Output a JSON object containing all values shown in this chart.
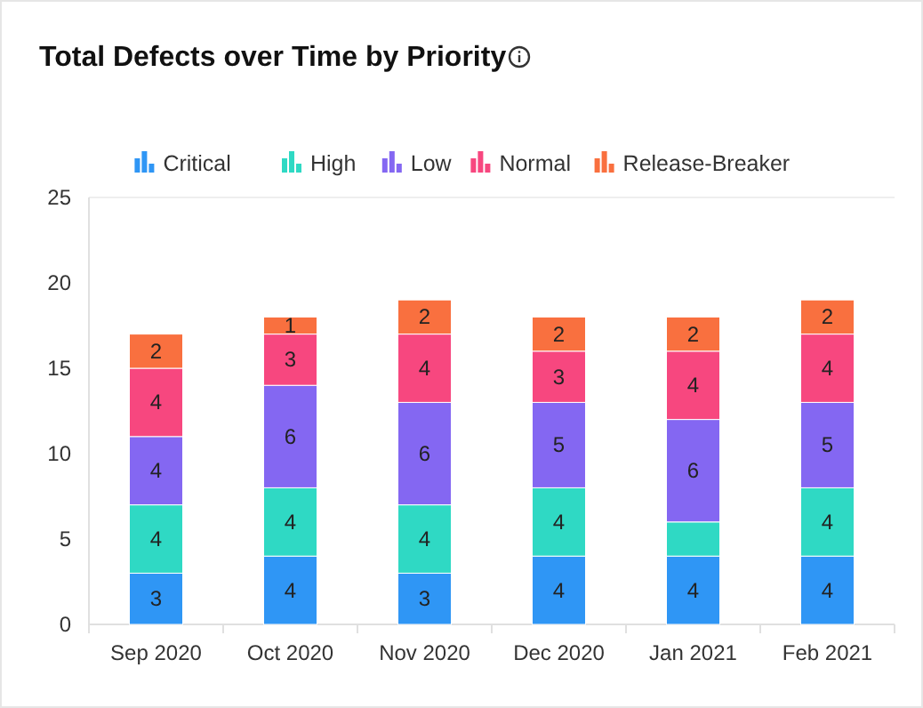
{
  "chart_data": {
    "type": "bar",
    "title": "Total Defects over Time by Priority",
    "stacked": true,
    "legend": "top",
    "grid": false,
    "categories": [
      "Sep 2020",
      "Oct 2020",
      "Nov 2020",
      "Dec 2020",
      "Jan 2021",
      "Feb 2021"
    ],
    "ylim": [
      0,
      25
    ],
    "yticks": [
      0,
      5,
      10,
      15,
      20,
      25
    ],
    "series": [
      {
        "name": "Critical",
        "color": "#2f96f5",
        "values": [
          3,
          4,
          3,
          4,
          4,
          4
        ],
        "value_labels": [
          "3",
          "4",
          "3",
          "4",
          "4",
          "4"
        ]
      },
      {
        "name": "High",
        "color": "#2fd9c4",
        "values": [
          4,
          4,
          4,
          4,
          2,
          4
        ],
        "value_labels": [
          "4",
          "4",
          "4",
          "4",
          null,
          "4"
        ]
      },
      {
        "name": "Low",
        "color": "#8467f2",
        "values": [
          4,
          6,
          6,
          5,
          6,
          5
        ],
        "value_labels": [
          "4",
          "6",
          "6",
          "5",
          "6",
          "5"
        ]
      },
      {
        "name": "Normal",
        "color": "#f7477f",
        "values": [
          4,
          3,
          4,
          3,
          4,
          4
        ],
        "value_labels": [
          "4",
          "3",
          "4",
          "3",
          "4",
          "4"
        ]
      },
      {
        "name": "Release-Breaker",
        "color": "#f9703f",
        "values": [
          2,
          1,
          2,
          2,
          2,
          2
        ],
        "value_labels": [
          "2",
          "1",
          "2",
          "2",
          "2",
          "2"
        ]
      }
    ]
  }
}
